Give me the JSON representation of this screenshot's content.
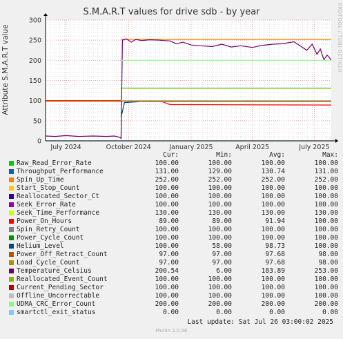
{
  "title": "S.M.A.R.T values for drive sdb - by year",
  "side_text": "RRDTOOL / TOBI OETIKER",
  "footer": {
    "last_update": "Last update: Sat Jul 26 03:00:02 2025",
    "munin": "Munin 2.0.56"
  },
  "colors": {
    "background": "#f0f0f0",
    "plot_background": "#ffffff",
    "major_grid": "#e8a0a0",
    "minor_grid": "#dddddd"
  },
  "legend": {
    "headers": [
      "Cur:",
      "Min:",
      "Avg:",
      "Max:"
    ],
    "rows": [
      {
        "name": "Raw_Read_Error_Rate",
        "color": "#00cc00",
        "cur": "100.00",
        "min": "100.00",
        "avg": "100.00",
        "max": "100.00"
      },
      {
        "name": "Throughput_Performance",
        "color": "#0066b3",
        "cur": "131.00",
        "min": "129.00",
        "avg": "130.74",
        "max": "131.00"
      },
      {
        "name": "Spin_Up_Time",
        "color": "#ff8000",
        "cur": "252.00",
        "min": "252.00",
        "avg": "252.00",
        "max": "252.00"
      },
      {
        "name": "Start_Stop_Count",
        "color": "#ffcc00",
        "cur": "100.00",
        "min": "100.00",
        "avg": "100.00",
        "max": "100.00"
      },
      {
        "name": "Reallocated_Sector_Ct",
        "color": "#330099",
        "cur": "100.00",
        "min": "100.00",
        "avg": "100.00",
        "max": "100.00"
      },
      {
        "name": "Seek_Error_Rate",
        "color": "#990099",
        "cur": "100.00",
        "min": "100.00",
        "avg": "100.00",
        "max": "100.00"
      },
      {
        "name": "Seek_Time_Performance",
        "color": "#ccff00",
        "cur": "130.00",
        "min": "130.00",
        "avg": "130.00",
        "max": "130.00"
      },
      {
        "name": "Power_On_Hours",
        "color": "#ff0000",
        "cur": "89.00",
        "min": "89.00",
        "avg": "91.94",
        "max": "100.00"
      },
      {
        "name": "Spin_Retry_Count",
        "color": "#808080",
        "cur": "100.00",
        "min": "100.00",
        "avg": "100.00",
        "max": "100.00"
      },
      {
        "name": "Power_Cycle_Count",
        "color": "#008f00",
        "cur": "100.00",
        "min": "100.00",
        "avg": "100.00",
        "max": "100.00"
      },
      {
        "name": "Helium_Level",
        "color": "#00487d",
        "cur": "100.00",
        "min": "58.00",
        "avg": "98.73",
        "max": "100.00"
      },
      {
        "name": "Power_Off_Retract_Count",
        "color": "#b35a00",
        "cur": "97.00",
        "min": "97.00",
        "avg": "97.68",
        "max": "98.00"
      },
      {
        "name": "Load_Cycle_Count",
        "color": "#b38f00",
        "cur": "97.00",
        "min": "97.00",
        "avg": "97.68",
        "max": "98.00"
      },
      {
        "name": "Temperature_Celsius",
        "color": "#6b006b",
        "cur": "200.54",
        "min": "6.00",
        "avg": "183.89",
        "max": "253.00"
      },
      {
        "name": "Reallocated_Event_Count",
        "color": "#8fb300",
        "cur": "100.00",
        "min": "100.00",
        "avg": "100.00",
        "max": "100.00"
      },
      {
        "name": "Current_Pending_Sector",
        "color": "#b30000",
        "cur": "100.00",
        "min": "100.00",
        "avg": "100.00",
        "max": "100.00"
      },
      {
        "name": "Offline_Uncorrectable",
        "color": "#bebebe",
        "cur": "100.00",
        "min": "100.00",
        "avg": "100.00",
        "max": "100.00"
      },
      {
        "name": "UDMA_CRC_Error_Count",
        "color": "#80ff80",
        "cur": "200.00",
        "min": "200.00",
        "avg": "200.00",
        "max": "200.00"
      },
      {
        "name": "smartctl_exit_status",
        "color": "#80c9ff",
        "cur": "0.00",
        "min": "0.00",
        "avg": "0.00",
        "max": "0.00"
      }
    ]
  },
  "chart_data": {
    "type": "line",
    "title": "S.M.A.R.T values for drive sdb - by year",
    "ylabel": "Attribute S.M.A.R.T value",
    "xlabel": "",
    "ylim": [
      0,
      300
    ],
    "yticks": [
      0,
      50,
      100,
      150,
      200,
      250,
      300
    ],
    "xlim": [
      "2024-06-01",
      "2025-07-26"
    ],
    "xticks": [
      {
        "label": "July 2024",
        "date": "2024-07-01"
      },
      {
        "label": "October 2024",
        "date": "2024-10-01"
      },
      {
        "label": "January 2025",
        "date": "2025-01-01"
      },
      {
        "label": "April 2025",
        "date": "2025-04-01"
      },
      {
        "label": "July 2025",
        "date": "2025-07-01"
      }
    ],
    "grid": true,
    "series": [
      {
        "name": "Raw_Read_Error_Rate",
        "color": "#00cc00",
        "points": [
          [
            "2024-09-20",
            100
          ],
          [
            "2025-07-26",
            100
          ]
        ]
      },
      {
        "name": "Throughput_Performance",
        "color": "#0066b3",
        "points": [
          [
            "2024-09-20",
            131
          ],
          [
            "2025-07-26",
            131
          ]
        ]
      },
      {
        "name": "Spin_Up_Time",
        "color": "#ff8000",
        "points": [
          [
            "2024-09-20",
            252
          ],
          [
            "2025-07-26",
            252
          ]
        ]
      },
      {
        "name": "Start_Stop_Count",
        "color": "#ffcc00",
        "points": [
          [
            "2024-09-20",
            100
          ],
          [
            "2025-07-26",
            100
          ]
        ]
      },
      {
        "name": "Reallocated_Sector_Ct",
        "color": "#330099",
        "points": [
          [
            "2024-09-20",
            100
          ],
          [
            "2025-07-26",
            100
          ]
        ]
      },
      {
        "name": "Seek_Error_Rate",
        "color": "#990099",
        "points": [
          [
            "2024-09-20",
            100
          ],
          [
            "2025-07-26",
            100
          ]
        ]
      },
      {
        "name": "Seek_Time_Performance",
        "color": "#ccff00",
        "points": [
          [
            "2024-09-20",
            130
          ],
          [
            "2025-07-26",
            130
          ]
        ]
      },
      {
        "name": "Power_On_Hours",
        "color": "#ff0000",
        "points": [
          [
            "2024-06-01",
            100
          ],
          [
            "2024-11-15",
            100
          ],
          [
            "2024-12-01",
            90
          ],
          [
            "2025-07-26",
            89
          ]
        ]
      },
      {
        "name": "Spin_Retry_Count",
        "color": "#808080",
        "points": [
          [
            "2024-09-20",
            100
          ],
          [
            "2025-07-26",
            100
          ]
        ]
      },
      {
        "name": "Power_Cycle_Count",
        "color": "#008f00",
        "points": [
          [
            "2024-09-20",
            100
          ],
          [
            "2025-07-26",
            100
          ]
        ]
      },
      {
        "name": "Helium_Level",
        "color": "#00487d",
        "points": [
          [
            "2024-09-20",
            58
          ],
          [
            "2024-09-25",
            95
          ],
          [
            "2024-10-15",
            97
          ],
          [
            "2024-11-01",
            100
          ],
          [
            "2025-07-26",
            100
          ]
        ]
      },
      {
        "name": "Power_Off_Retract_Count",
        "color": "#b35a00",
        "points": [
          [
            "2024-06-01",
            98
          ],
          [
            "2024-10-01",
            98
          ],
          [
            "2024-11-15",
            97
          ],
          [
            "2025-07-26",
            97
          ]
        ]
      },
      {
        "name": "Load_Cycle_Count",
        "color": "#b38f00",
        "points": [
          [
            "2024-06-01",
            98
          ],
          [
            "2024-10-01",
            98
          ],
          [
            "2024-11-15",
            97
          ],
          [
            "2025-07-26",
            97
          ]
        ]
      },
      {
        "name": "Temperature_Celsius",
        "color": "#6b006b",
        "points": [
          [
            "2024-06-01",
            12
          ],
          [
            "2024-06-15",
            11
          ],
          [
            "2024-07-01",
            13
          ],
          [
            "2024-07-20",
            11
          ],
          [
            "2024-08-10",
            12
          ],
          [
            "2024-08-30",
            11
          ],
          [
            "2024-09-10",
            12
          ],
          [
            "2024-09-18",
            9
          ],
          [
            "2024-09-20",
            6
          ],
          [
            "2024-09-22",
            250
          ],
          [
            "2024-09-28",
            253
          ],
          [
            "2024-10-05",
            245
          ],
          [
            "2024-10-12",
            252
          ],
          [
            "2024-10-20",
            249
          ],
          [
            "2024-11-01",
            251
          ],
          [
            "2024-11-15",
            250
          ],
          [
            "2024-12-01",
            248
          ],
          [
            "2024-12-10",
            241
          ],
          [
            "2024-12-20",
            245
          ],
          [
            "2025-01-01",
            238
          ],
          [
            "2025-01-15",
            236
          ],
          [
            "2025-02-01",
            234
          ],
          [
            "2025-02-15",
            240
          ],
          [
            "2025-03-01",
            233
          ],
          [
            "2025-03-15",
            236
          ],
          [
            "2025-04-01",
            232
          ],
          [
            "2025-04-15",
            237
          ],
          [
            "2025-05-01",
            240
          ],
          [
            "2025-05-15",
            241
          ],
          [
            "2025-06-01",
            246
          ],
          [
            "2025-06-10",
            236
          ],
          [
            "2025-06-20",
            225
          ],
          [
            "2025-06-28",
            240
          ],
          [
            "2025-07-05",
            215
          ],
          [
            "2025-07-10",
            228
          ],
          [
            "2025-07-15",
            202
          ],
          [
            "2025-07-20",
            213
          ],
          [
            "2025-07-26",
            200.54
          ]
        ]
      },
      {
        "name": "Reallocated_Event_Count",
        "color": "#8fb300",
        "points": [
          [
            "2024-09-20",
            100
          ],
          [
            "2025-07-26",
            100
          ]
        ]
      },
      {
        "name": "Current_Pending_Sector",
        "color": "#b30000",
        "points": [
          [
            "2024-09-20",
            100
          ],
          [
            "2025-07-26",
            100
          ]
        ]
      },
      {
        "name": "Offline_Uncorrectable",
        "color": "#bebebe",
        "points": [
          [
            "2024-09-20",
            100
          ],
          [
            "2025-07-26",
            100
          ]
        ]
      },
      {
        "name": "UDMA_CRC_Error_Count",
        "color": "#80ff80",
        "points": [
          [
            "2024-09-20",
            200
          ],
          [
            "2025-07-26",
            200
          ]
        ]
      },
      {
        "name": "smartctl_exit_status",
        "color": "#80c9ff",
        "points": [
          [
            "2024-06-01",
            0
          ],
          [
            "2025-07-26",
            0
          ]
        ]
      }
    ]
  }
}
